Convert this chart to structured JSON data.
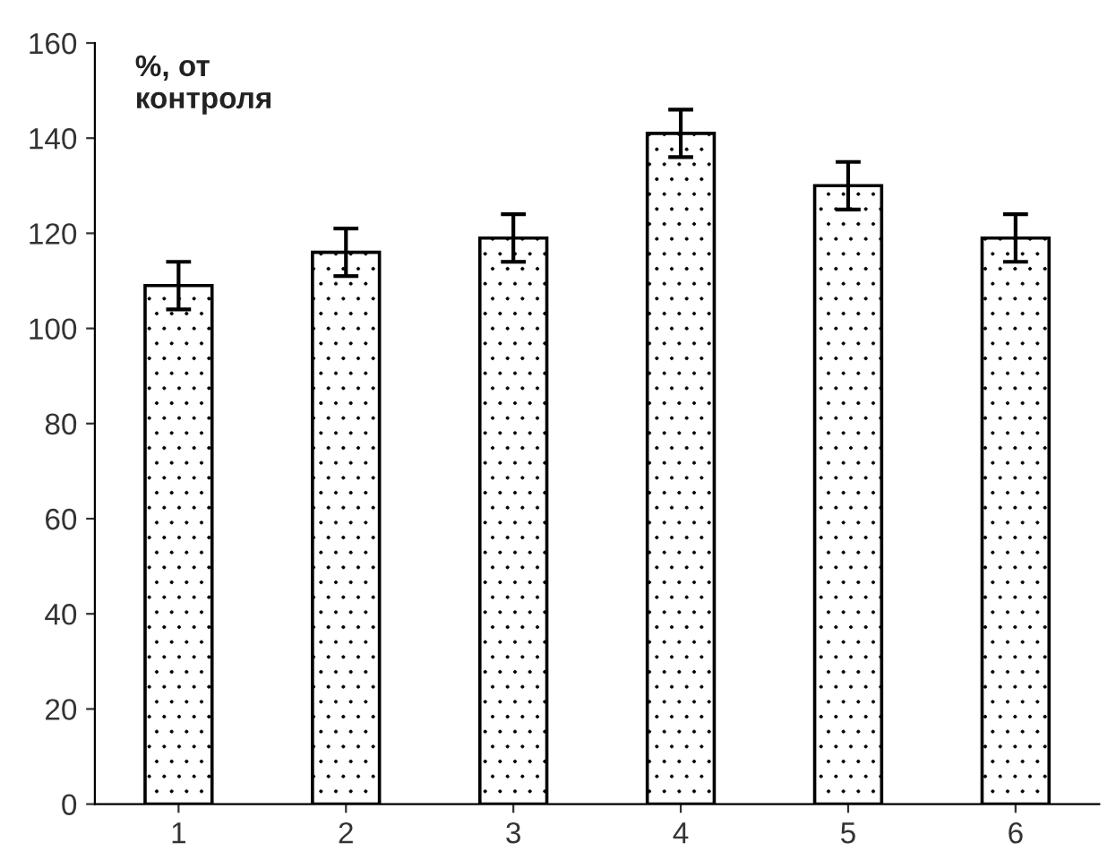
{
  "chart_data": {
    "type": "bar",
    "ylabel": "%, от\nконтроля",
    "categories": [
      "1",
      "2",
      "3",
      "4",
      "5",
      "6"
    ],
    "values": [
      109,
      116,
      119,
      141,
      130,
      119
    ],
    "errors": [
      5,
      5,
      5,
      5,
      5,
      5
    ],
    "ylim": [
      0,
      160
    ],
    "yticks": [
      0,
      20,
      40,
      60,
      80,
      100,
      120,
      140,
      160
    ],
    "grid": false,
    "legend": false
  }
}
